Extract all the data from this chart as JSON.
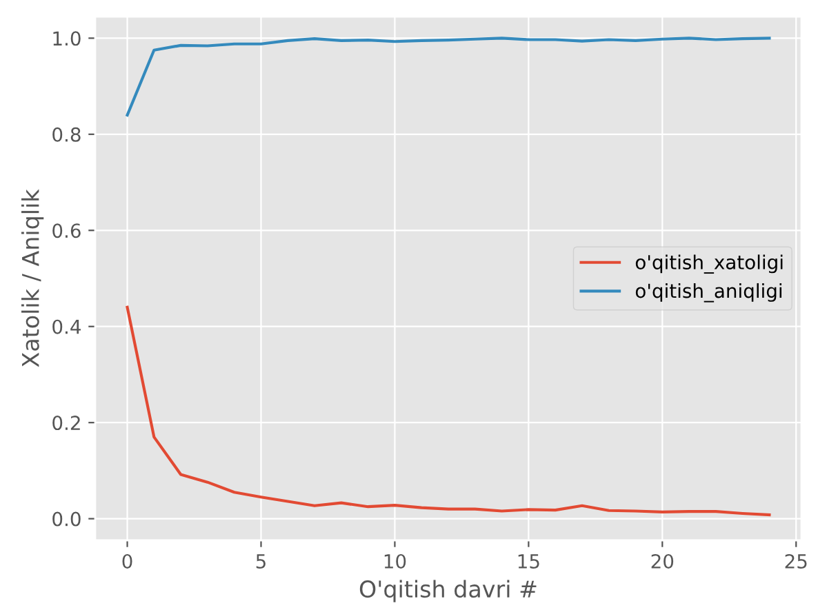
{
  "chart_data": {
    "type": "line",
    "xlabel": "O'qitish davri #",
    "ylabel": "Xatolik / Aniqlik",
    "x": [
      0,
      1,
      2,
      3,
      4,
      5,
      6,
      7,
      8,
      9,
      10,
      11,
      12,
      13,
      14,
      15,
      16,
      17,
      18,
      19,
      20,
      21,
      22,
      23,
      24
    ],
    "series": [
      {
        "name": "o'qitish_xatoligi",
        "color": "#e24a33",
        "values": [
          0.44,
          0.17,
          0.092,
          0.076,
          0.055,
          0.045,
          0.036,
          0.027,
          0.033,
          0.025,
          0.028,
          0.023,
          0.02,
          0.02,
          0.016,
          0.019,
          0.018,
          0.027,
          0.017,
          0.016,
          0.014,
          0.015,
          0.015,
          0.011,
          0.008
        ]
      },
      {
        "name": "o'qitish_aniqligi",
        "color": "#348abd",
        "values": [
          0.84,
          0.975,
          0.985,
          0.984,
          0.988,
          0.988,
          0.995,
          0.999,
          0.995,
          0.996,
          0.993,
          0.995,
          0.996,
          0.998,
          1.0,
          0.997,
          0.997,
          0.994,
          0.997,
          0.995,
          0.998,
          1.0,
          0.997,
          0.999,
          1.0
        ]
      }
    ],
    "xlim": [
      -1.2,
      25.2
    ],
    "ylim": [
      -0.045,
      1.045
    ],
    "xticks": [
      0,
      5,
      10,
      15,
      20,
      25
    ],
    "yticks": [
      {
        "value": 0,
        "label": "0.0"
      },
      0.2,
      0.4,
      0.6,
      0.8,
      {
        "value": 1,
        "label": "1.0"
      }
    ],
    "grid": true,
    "legend": "right",
    "line_style": "solid",
    "marker": "none"
  }
}
